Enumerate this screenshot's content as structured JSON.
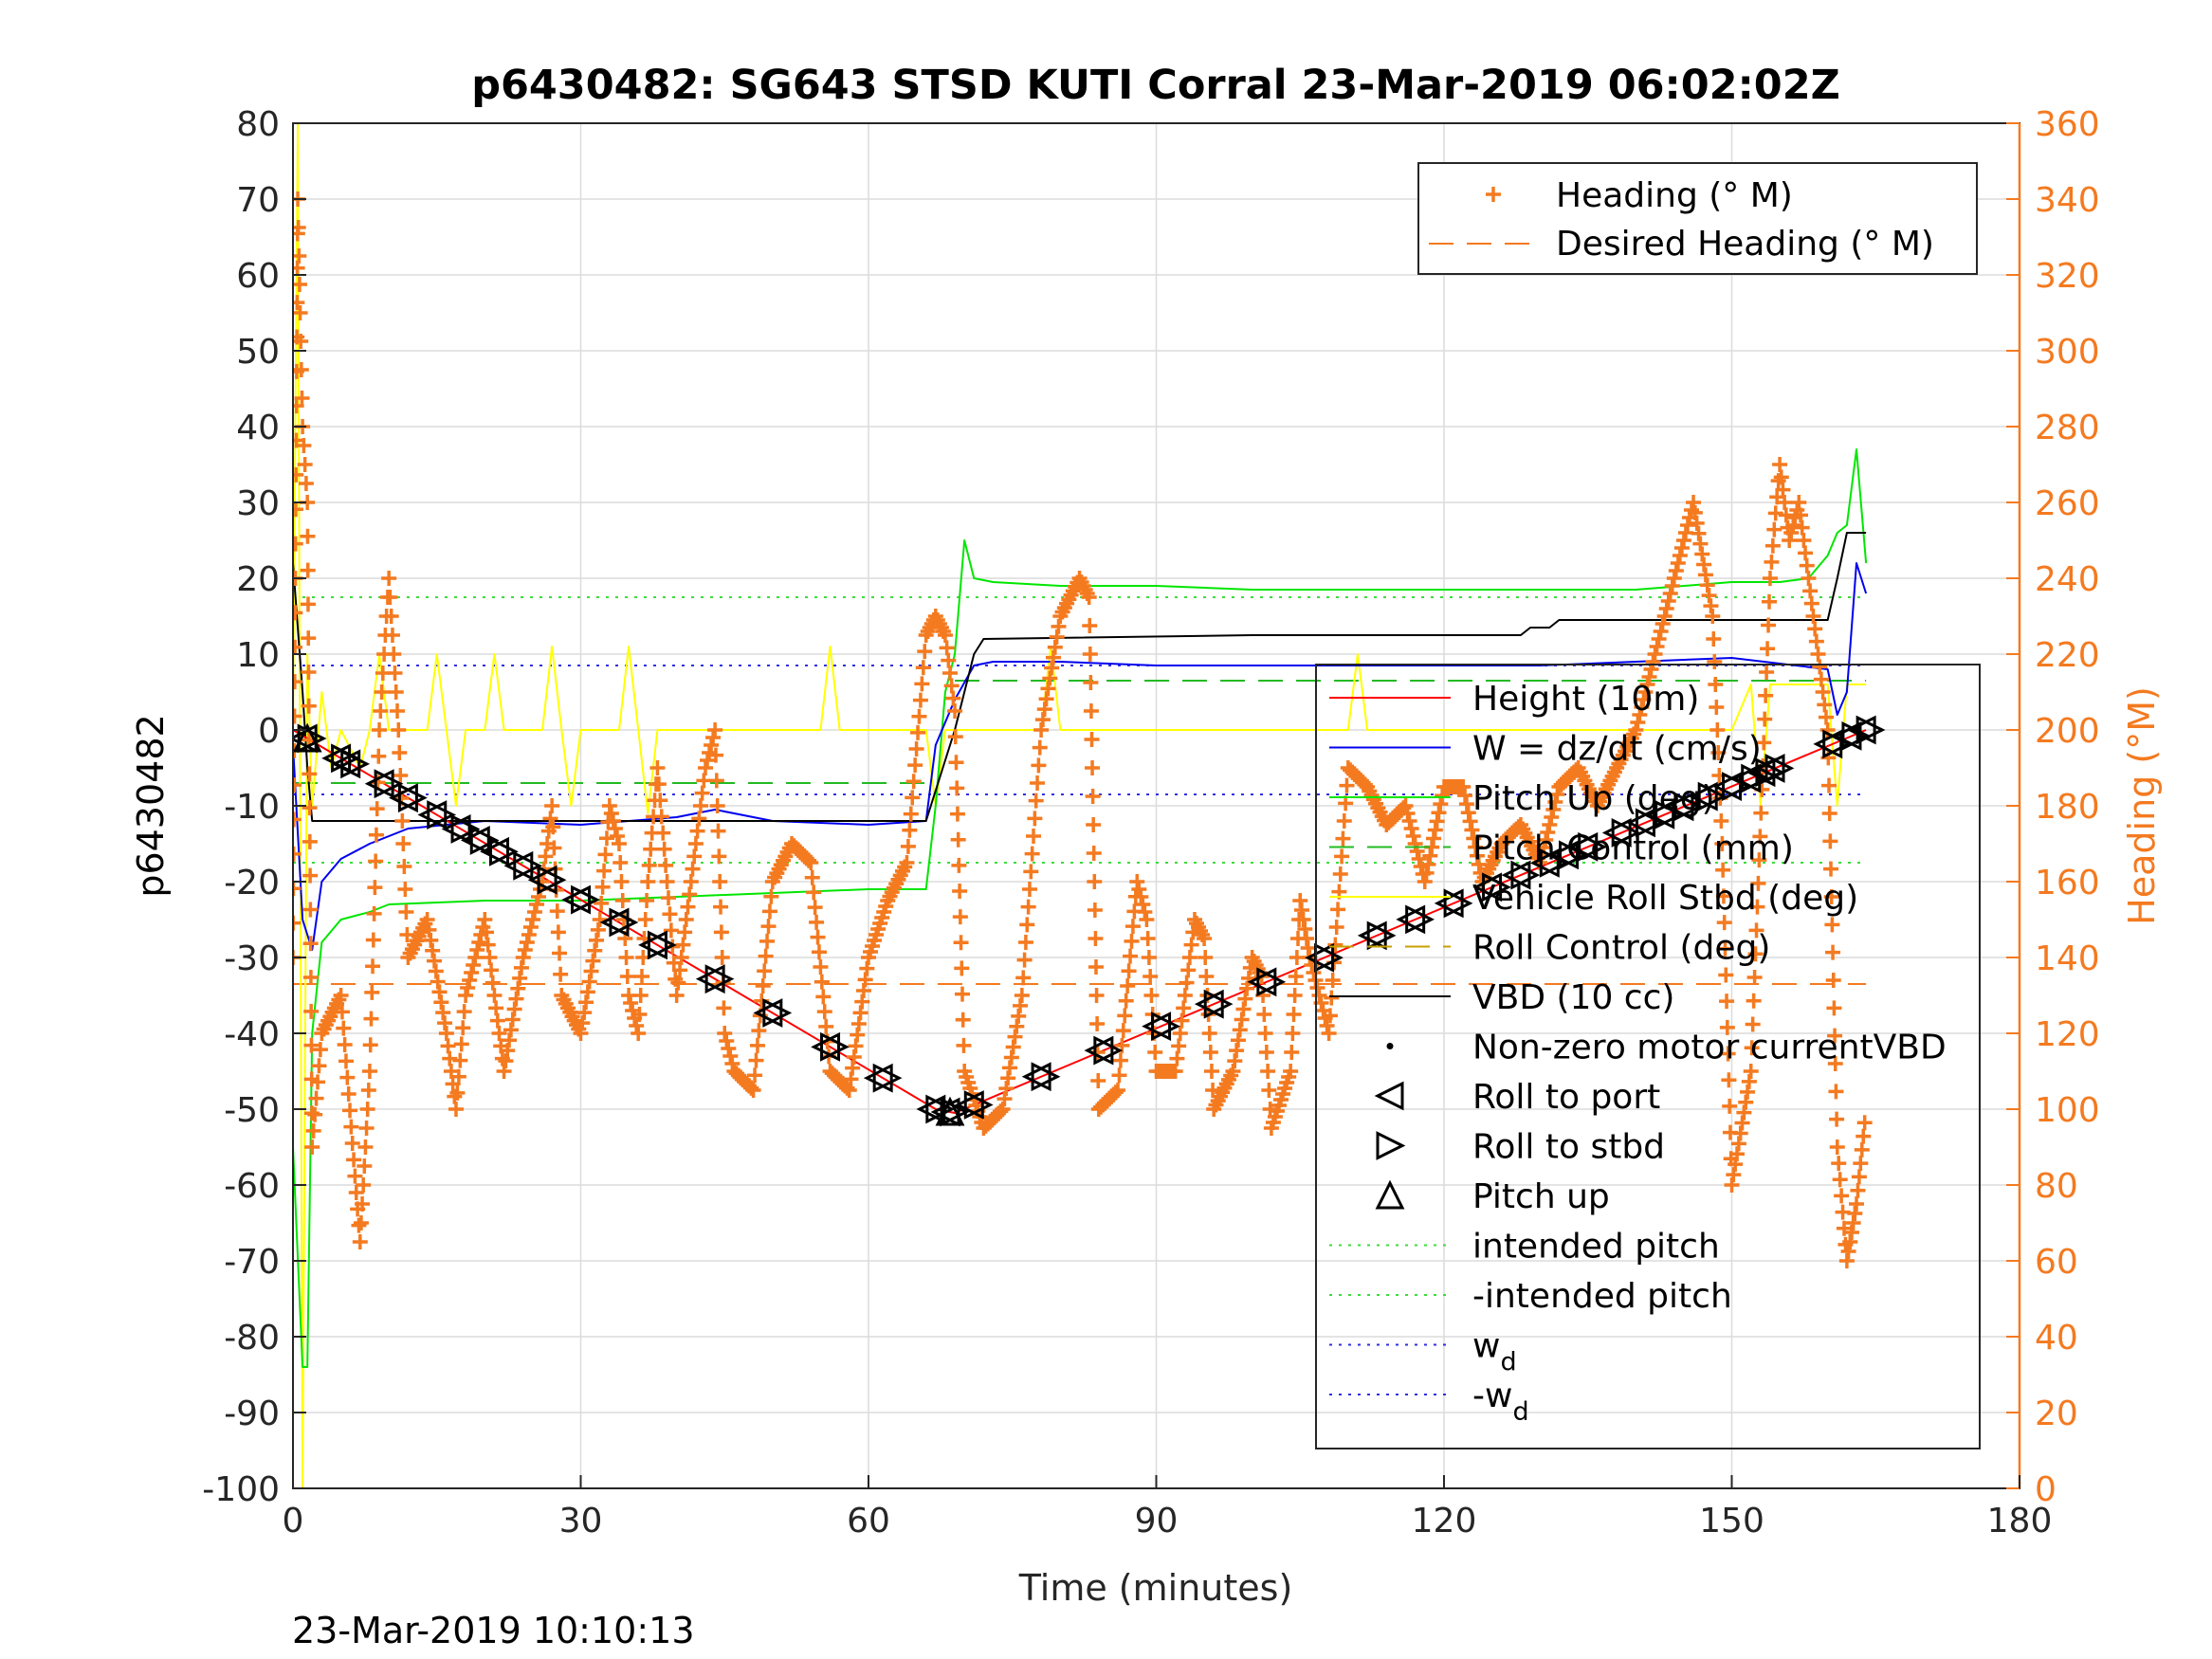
{
  "chart_data": {
    "type": "line",
    "title": "p6430482: SG643 STSD KUTI Corral 23-Mar-2019 06:02:02Z",
    "xlabel": "Time (minutes)",
    "ylabel_left": "p6430482",
    "ylabel_right": "Heading (°M)",
    "footer": "23-Mar-2019 10:10:13",
    "xlim": [
      0,
      180
    ],
    "ylim_left": [
      -100,
      80
    ],
    "ylim_right": [
      0,
      360
    ],
    "xticks": [
      "0",
      "30",
      "60",
      "90",
      "120",
      "150",
      "180"
    ],
    "yticks_left": [
      "80",
      "70",
      "60",
      "50",
      "40",
      "30",
      "20",
      "10",
      "0",
      "-10",
      "-20",
      "-30",
      "-40",
      "-50",
      "-60",
      "-70",
      "-80",
      "-90",
      "-100"
    ],
    "yticks_right": [
      "360",
      "340",
      "320",
      "300",
      "280",
      "260",
      "240",
      "220",
      "200",
      "180",
      "160",
      "140",
      "120",
      "100",
      "80",
      "60",
      "40",
      "20",
      "0"
    ],
    "grid": true,
    "colors": {
      "heading": "#f47a20",
      "height": "#ff0000",
      "w": "#0000ee",
      "pitch": "#00e600",
      "roll": "#ffff00",
      "vbd": "#000000"
    },
    "legend_top": {
      "placement": "top-right",
      "entries": [
        "Heading (° M)",
        "Desired Heading (° M)"
      ]
    },
    "legend_main": {
      "placement": "right",
      "entries": [
        {
          "label": "Height (10m)"
        },
        {
          "label": "W = dz/dt (cm/s)"
        },
        {
          "label": "Pitch Up (deg)"
        },
        {
          "label": "Pitch Control (mm)"
        },
        {
          "label": "Vehicle Roll Stbd (deg)"
        },
        {
          "label": "Roll Control (deg)"
        },
        {
          "label": "VBD (10 cc)"
        },
        {
          "label": "Non-zero motor currentVBD"
        },
        {
          "label": "Roll to port"
        },
        {
          "label": "Roll to stbd"
        },
        {
          "label": "Pitch up"
        },
        {
          "label": "intended pitch"
        },
        {
          "label": "-intended pitch"
        },
        {
          "label": "w",
          "sub": "d"
        },
        {
          "label": "-w",
          "sub": "d"
        }
      ]
    },
    "reference_lines": {
      "intended_pitch": 17.5,
      "neg_intended_pitch": -17.5,
      "w_d": 8.5,
      "neg_w_d": -8.5,
      "pitch_control_dive": -7,
      "pitch_control_climb": 6.5,
      "roll_control": 0,
      "desired_heading": 133,
      "x_extent": [
        0,
        164
      ]
    },
    "series": [
      {
        "name": "Height (10m)",
        "x": [
          0,
          67,
          69,
          164
        ],
        "y": [
          0,
          -50,
          -50.5,
          0
        ]
      },
      {
        "name": "W = dz/dt (cm/s)",
        "x": [
          0,
          1,
          2,
          3,
          5,
          8,
          12,
          20,
          30,
          40,
          44,
          50,
          60,
          66,
          67,
          69,
          71,
          73,
          80,
          90,
          100,
          110,
          120,
          130,
          140,
          150,
          160,
          161,
          162,
          163,
          164
        ],
        "y": [
          -2,
          -25,
          -29,
          -20,
          -17,
          -15,
          -13,
          -12,
          -12.5,
          -11.5,
          -10.5,
          -12,
          -12.5,
          -12,
          -2,
          4,
          8.5,
          9,
          9,
          8.5,
          8.5,
          8.5,
          8.5,
          8.5,
          9,
          9.5,
          8,
          2,
          5,
          22,
          18
        ]
      },
      {
        "name": "Pitch Up (deg)",
        "x": [
          0,
          1,
          1.5,
          2,
          3,
          5,
          8,
          10,
          20,
          30,
          40,
          50,
          60,
          66,
          67,
          68,
          69,
          70,
          71,
          73,
          80,
          90,
          100,
          110,
          120,
          130,
          140,
          150,
          155,
          158,
          160,
          161,
          162,
          163,
          164
        ],
        "y": [
          -55,
          -84,
          -84,
          -40,
          -28,
          -25,
          -24,
          -23,
          -22.5,
          -22.5,
          -22,
          -21.5,
          -21,
          -21,
          -10,
          5,
          10,
          25,
          20,
          19.5,
          19,
          19,
          18.5,
          18.5,
          18.5,
          18.5,
          18.5,
          19.5,
          19.5,
          20,
          23,
          26,
          27,
          37,
          22
        ]
      },
      {
        "name": "Vehicle Roll Stbd (deg)",
        "x": [
          0,
          0.5,
          1,
          1.5,
          2,
          3,
          4,
          5,
          7,
          8,
          9,
          10,
          14,
          15,
          16,
          17,
          18,
          20,
          21,
          22,
          26,
          27,
          28,
          29,
          30,
          34,
          35,
          36,
          37,
          38,
          44,
          50,
          55,
          56,
          57,
          58,
          60,
          62,
          66,
          67,
          68,
          69,
          70,
          72,
          78,
          79,
          80,
          81,
          82,
          84,
          90,
          100,
          110,
          111,
          112,
          120,
          130,
          140,
          150,
          152,
          153,
          154,
          156,
          158,
          160,
          161,
          162,
          163,
          164
        ],
        "y": [
          0,
          80,
          -100,
          10,
          -10,
          5,
          -5,
          0,
          -5,
          0,
          10,
          0,
          0,
          10,
          0,
          -10,
          0,
          0,
          10,
          0,
          0,
          11,
          0,
          -10,
          0,
          0,
          11,
          0,
          -11,
          0,
          0,
          0,
          0,
          11,
          0,
          0,
          0,
          0,
          0,
          -10,
          0,
          0,
          0,
          0,
          0,
          11,
          0,
          0,
          0,
          0,
          0,
          0,
          0,
          10,
          0,
          0,
          0,
          0,
          0,
          6,
          -10,
          6,
          6,
          6,
          6,
          -10,
          6,
          6,
          6
        ]
      },
      {
        "name": "VBD (10 cc)",
        "x": [
          0,
          1,
          1.5,
          2,
          5,
          66,
          67,
          69,
          71,
          72,
          100,
          128,
          129,
          131,
          132,
          160,
          161,
          162,
          164
        ],
        "y": [
          22,
          5,
          -5,
          -12,
          -12,
          -12,
          -8,
          0,
          10,
          12,
          12.5,
          12.5,
          13.5,
          13.5,
          14.5,
          14.5,
          20,
          26,
          26
        ]
      },
      {
        "name": "Heading (° M)",
        "x": [
          0,
          0.5,
          1,
          1.5,
          2,
          3,
          5,
          7,
          8,
          9,
          10,
          11,
          12,
          14,
          16,
          17,
          18,
          20,
          22,
          24,
          26,
          27,
          28,
          30,
          32,
          33,
          34,
          35,
          36,
          37,
          38,
          40,
          42,
          43,
          44,
          45,
          46,
          48,
          50,
          52,
          54,
          56,
          58,
          60,
          62,
          64,
          66,
          67,
          68,
          69,
          70,
          72,
          74,
          76,
          78,
          80,
          82,
          83,
          84,
          86,
          88,
          89,
          90,
          92,
          94,
          95,
          96,
          98,
          100,
          101,
          102,
          104,
          105,
          106,
          108,
          110,
          112,
          114,
          116,
          118,
          120,
          122,
          124,
          126,
          128,
          130,
          132,
          134,
          136,
          138,
          140,
          142,
          144,
          145,
          146,
          148,
          149,
          150,
          152,
          154,
          155,
          156,
          157,
          158,
          160,
          161,
          162,
          163,
          164
        ],
        "y": [
          140,
          340,
          280,
          260,
          90,
          120,
          130,
          65,
          110,
          200,
          240,
          200,
          140,
          150,
          120,
          100,
          130,
          150,
          110,
          140,
          160,
          180,
          130,
          120,
          150,
          180,
          170,
          130,
          120,
          160,
          190,
          130,
          170,
          190,
          200,
          120,
          110,
          105,
          160,
          170,
          165,
          110,
          105,
          140,
          155,
          165,
          225,
          230,
          225,
          205,
          110,
          95,
          100,
          130,
          200,
          230,
          240,
          235,
          100,
          105,
          160,
          150,
          110,
          110,
          150,
          145,
          100,
          110,
          140,
          135,
          95,
          110,
          155,
          140,
          120,
          190,
          185,
          175,
          180,
          160,
          185,
          185,
          160,
          170,
          175,
          165,
          185,
          190,
          180,
          190,
          200,
          220,
          240,
          250,
          260,
          230,
          170,
          80,
          110,
          240,
          270,
          250,
          260,
          240,
          200,
          90,
          60,
          75,
          100
        ]
      }
    ]
  }
}
